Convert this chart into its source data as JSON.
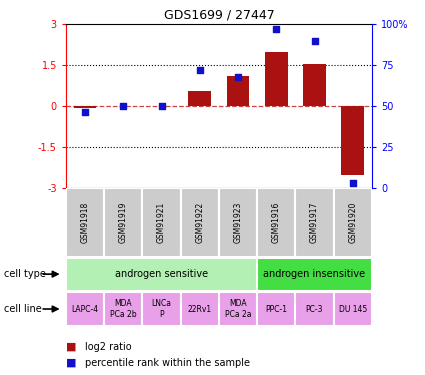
{
  "title": "GDS1699 / 27447",
  "samples": [
    "GSM91918",
    "GSM91919",
    "GSM91921",
    "GSM91922",
    "GSM91923",
    "GSM91916",
    "GSM91917",
    "GSM91920"
  ],
  "log2_ratio": [
    -0.08,
    0.0,
    0.0,
    0.55,
    1.1,
    2.0,
    1.55,
    -2.55
  ],
  "percentile_rank": [
    46,
    50,
    50,
    72,
    68,
    97,
    90,
    3
  ],
  "bar_color": "#aa1111",
  "dot_color": "#1111cc",
  "zero_line_color": "#cc4444",
  "dotted_line_color": "#000000",
  "cell_type_light": "#b3f0b3",
  "cell_type_dark": "#44dd44",
  "cell_line_color": "#e8a0e8",
  "sample_bg_color": "#cccccc",
  "cell_types": [
    {
      "label": "androgen sensitive",
      "start": 0,
      "end": 5,
      "color": "#b3f0b3"
    },
    {
      "label": "androgen insensitive",
      "start": 5,
      "end": 8,
      "color": "#44dd44"
    }
  ],
  "cell_lines": [
    {
      "label": "LAPC-4",
      "start": 0,
      "end": 1
    },
    {
      "label": "MDA\nPCa 2b",
      "start": 1,
      "end": 2
    },
    {
      "label": "LNCa\nP",
      "start": 2,
      "end": 3
    },
    {
      "label": "22Rv1",
      "start": 3,
      "end": 4
    },
    {
      "label": "MDA\nPCa 2a",
      "start": 4,
      "end": 5
    },
    {
      "label": "PPC-1",
      "start": 5,
      "end": 6
    },
    {
      "label": "PC-3",
      "start": 6,
      "end": 7
    },
    {
      "label": "DU 145",
      "start": 7,
      "end": 8
    }
  ],
  "legend_bar_label": "log2 ratio",
  "legend_dot_label": "percentile rank within the sample"
}
